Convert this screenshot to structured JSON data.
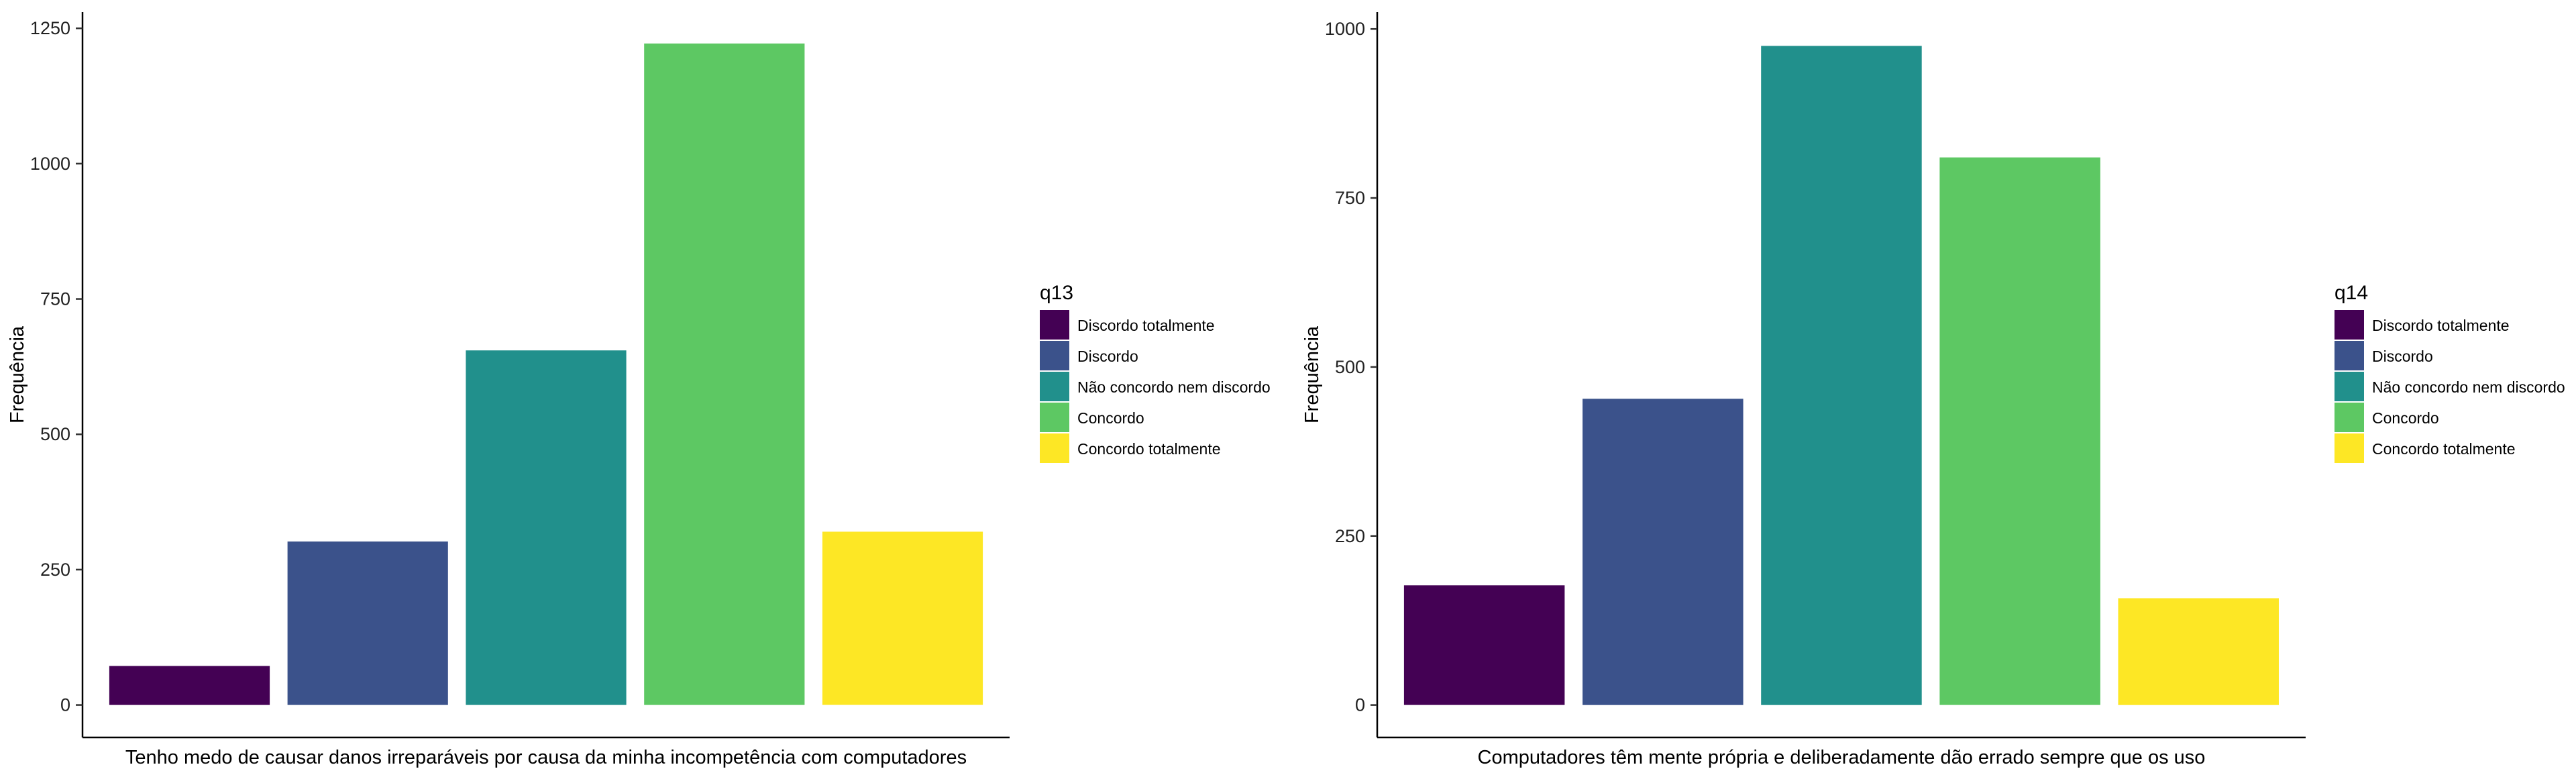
{
  "chart_data": [
    {
      "type": "bar",
      "title": "",
      "xlabel": "Tenho medo de causar danos irreparáveis por causa da minha incompetência com computadores",
      "ylabel": "Frequência",
      "categories": [
        "Discordo totalmente",
        "Discordo",
        "Não concordo nem discordo",
        "Concordo",
        "Concordo totalmente"
      ],
      "values": [
        72,
        302,
        655,
        1222,
        320
      ],
      "colors": [
        "#440154",
        "#3B528B",
        "#21908C",
        "#5DC863",
        "#FDE725"
      ],
      "ylim": [
        -60,
        1280
      ],
      "yticks": [
        0,
        250,
        500,
        750,
        1000,
        1250
      ],
      "legend": {
        "title": "q13",
        "placement": "right",
        "entries": [
          "Discordo totalmente",
          "Discordo",
          "Não concordo nem discordo",
          "Concordo",
          "Concordo totalmente"
        ]
      },
      "grid": false
    },
    {
      "type": "bar",
      "title": "",
      "xlabel": "Computadores têm mente própria e deliberadamente dão errado sempre que os uso",
      "ylabel": "Frequência",
      "categories": [
        "Discordo totalmente",
        "Discordo",
        "Não concordo nem discordo",
        "Concordo",
        "Concordo totalmente"
      ],
      "values": [
        177,
        453,
        975,
        810,
        158
      ],
      "colors": [
        "#440154",
        "#3B528B",
        "#21908C",
        "#5DC863",
        "#FDE725"
      ],
      "ylim": [
        -48,
        1025
      ],
      "yticks": [
        0,
        250,
        500,
        750,
        1000
      ],
      "legend": {
        "title": "q14",
        "placement": "right",
        "entries": [
          "Discordo totalmente",
          "Discordo",
          "Não concordo nem discordo",
          "Concordo",
          "Concordo totalmente"
        ]
      },
      "grid": false
    }
  ]
}
